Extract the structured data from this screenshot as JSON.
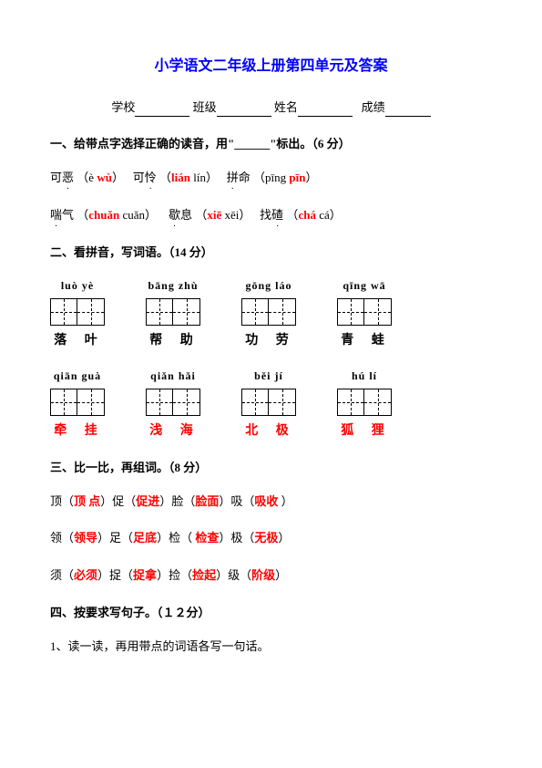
{
  "title": "小学语文二年级上册第四单元及答案",
  "info": {
    "school_label": "学校",
    "class_label": "班级",
    "name_label": "姓名",
    "score_label": "成绩"
  },
  "s1": {
    "head": "一、给带点字选择正确的读音，用\"______\"标出。（6 分）",
    "line1": {
      "t1": "可",
      "t1d": "恶",
      "p1a": "（è ",
      "p1b": "wù",
      "p1c": "）",
      "t2": "可",
      "t2d": "怜",
      "p2a": "（",
      "p2b": "lián",
      "p2c": "  lín）",
      "t3d": "拼",
      "t3": "命",
      "p3a": "（pīng  ",
      "p3b": "pīn",
      "p3c": "）"
    },
    "line2": {
      "t1d": "喘",
      "t1": "气",
      "p1a": "（",
      "p1b": "chuǎn",
      "p1c": "  cuǎn）",
      "t2d": "歇",
      "t2": "息",
      "p2a": "（",
      "p2b": "xiē",
      "p2c": "   xēi）",
      "t3": "找",
      "t3d": "碴",
      "p3a": "（",
      "p3b": "chá",
      "p3c": "     cá）"
    }
  },
  "s2": {
    "head": "二、看拼音，写词语。（14 分）",
    "row1": [
      {
        "py": "luò  yè",
        "ans": "落 叶",
        "red": false
      },
      {
        "py": "bāng zhù",
        "ans": "帮 助",
        "red": false
      },
      {
        "py": "gōng láo",
        "ans": "功 劳",
        "red": false
      },
      {
        "py": "qīng wā",
        "ans": "青 蛙",
        "red": false
      }
    ],
    "row2": [
      {
        "py": "qiān guà",
        "ans": "牵 挂",
        "red": true
      },
      {
        "py": "qiǎn hǎi",
        "ans": "浅 海",
        "red": true
      },
      {
        "py": "běi jí",
        "ans": "北 极",
        "red": true
      },
      {
        "py": "hú lí",
        "ans": "狐 狸",
        "red": true
      }
    ]
  },
  "s3": {
    "head": "三、比一比，再组词。（8 分）",
    "l1": {
      "a1": "顶（",
      "b1": "顶  点",
      "c1": "）促（",
      "b2": "促进",
      "c2": "）脸（",
      "b3": "脸面",
      "c3": "）吸（",
      "b4": "吸收",
      "c4": "  ）"
    },
    "l2": {
      "a1": "领（",
      "b1": "领导",
      "c1": "）足（",
      "b2": "足底",
      "c2": "）检（",
      "b3": "  检查",
      "c3": "）极（",
      "b4": "无极",
      "c4": "）"
    },
    "l3": {
      "a1": "须（",
      "b1": "必须",
      "c1": "）捉（",
      "b2": "捉拿",
      "c2": "）捡（",
      "b3": "捡起",
      "c3": "）级（",
      "b4": "阶级",
      "c4": "）"
    }
  },
  "s4": {
    "head": "四、按要求写句子。（１２分）",
    "sub1": "1、读一读，再用带点的词语各写一句话。"
  }
}
